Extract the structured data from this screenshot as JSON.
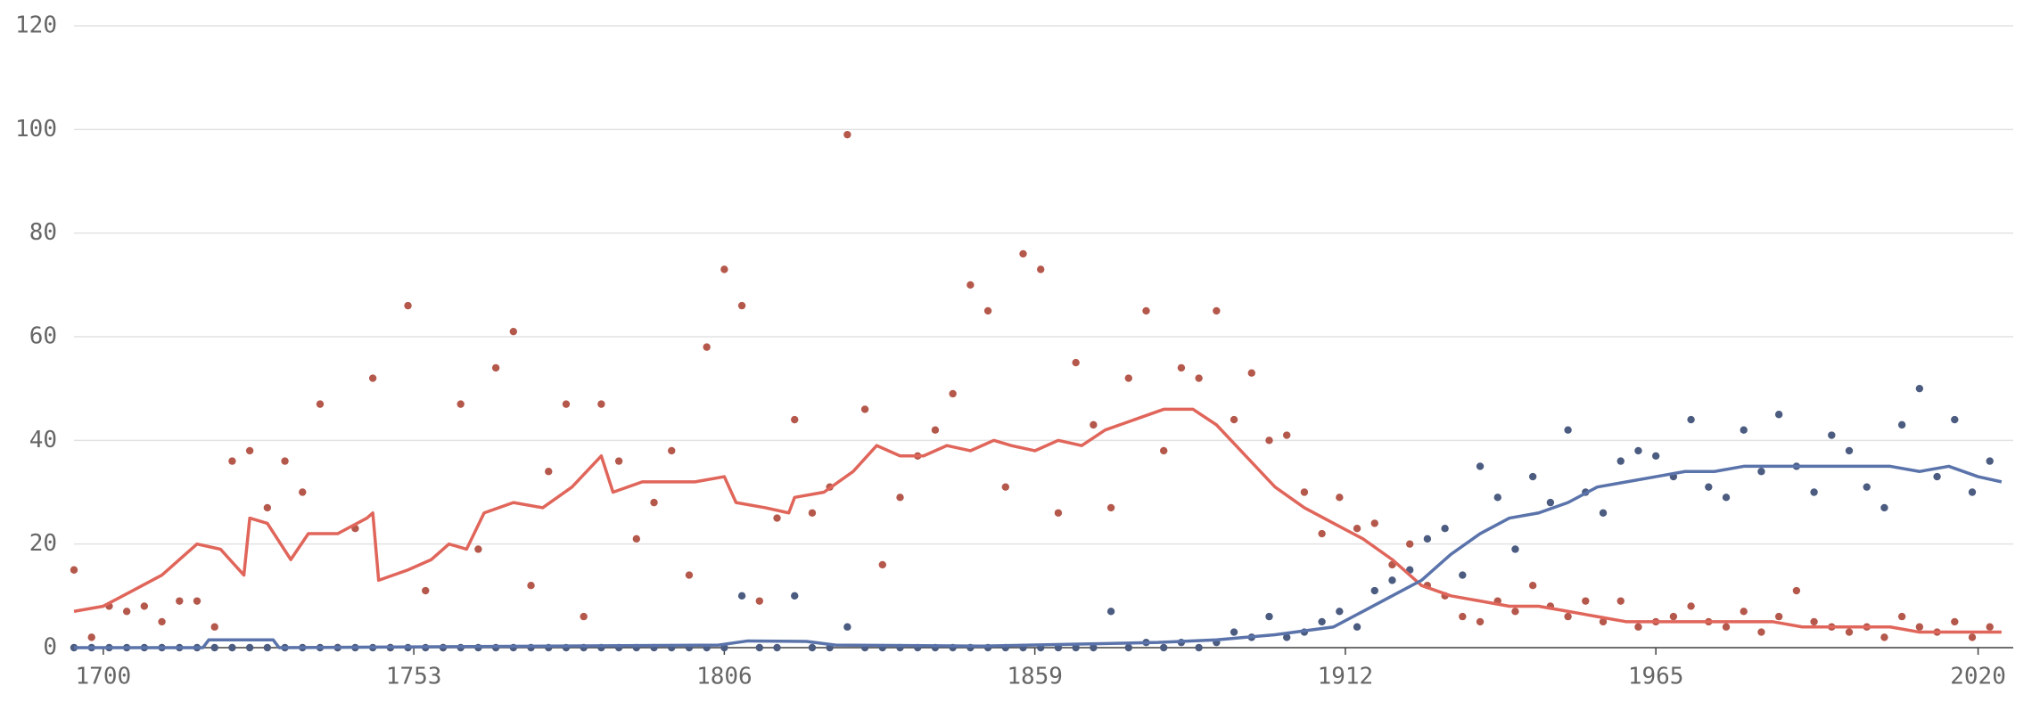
{
  "chart_data": {
    "type": "scatter",
    "xlim": [
      1695,
      2026
    ],
    "xticks": [
      1700,
      1753,
      1806,
      1859,
      1912,
      1965,
      2020
    ],
    "ylim": [
      0,
      120
    ],
    "yticks": [
      0,
      20,
      40,
      60,
      80,
      100,
      120
    ],
    "grid": true,
    "series": [
      {
        "mode": "markers",
        "color": "#b5584c",
        "x": [
          1695,
          1698,
          1701,
          1704,
          1707,
          1710,
          1713,
          1716,
          1719,
          1722,
          1725,
          1728,
          1731,
          1734,
          1737,
          1740,
          1743,
          1746,
          1749,
          1752,
          1755,
          1758,
          1761,
          1764,
          1767,
          1770,
          1773,
          1776,
          1779,
          1782,
          1785,
          1788,
          1791,
          1794,
          1797,
          1800,
          1803,
          1806,
          1809,
          1812,
          1815,
          1818,
          1821,
          1824,
          1827,
          1830,
          1833,
          1836,
          1839,
          1842,
          1845,
          1848,
          1851,
          1854,
          1857,
          1860,
          1863,
          1866,
          1869,
          1872,
          1875,
          1878,
          1881,
          1884,
          1887,
          1890,
          1893,
          1896,
          1899,
          1902,
          1905,
          1908,
          1911,
          1914,
          1917,
          1920,
          1923,
          1926,
          1929,
          1932,
          1935,
          1938,
          1941,
          1944,
          1947,
          1950,
          1953,
          1956,
          1959,
          1962,
          1965,
          1968,
          1971,
          1974,
          1977,
          1980,
          1983,
          1986,
          1989,
          1992,
          1995,
          1998,
          2001,
          2004,
          2007,
          2010,
          2013,
          2016,
          2019,
          2022
        ],
        "values": [
          15,
          2,
          8,
          7,
          8,
          5,
          9,
          9,
          4,
          36,
          38,
          27,
          36,
          30,
          47,
          0,
          23,
          52,
          0,
          66,
          11,
          0,
          47,
          19,
          54,
          61,
          12,
          34,
          47,
          6,
          47,
          36,
          21,
          28,
          38,
          14,
          58,
          73,
          66,
          9,
          25,
          44,
          26,
          31,
          99,
          46,
          16,
          29,
          37,
          42,
          49,
          70,
          65,
          31,
          76,
          73,
          26,
          55,
          43,
          27,
          52,
          65,
          38,
          54,
          52,
          65,
          44,
          53,
          40,
          41,
          30,
          22,
          29,
          23,
          24,
          16,
          20,
          12,
          10,
          6,
          5,
          9,
          7,
          12,
          8,
          6,
          9,
          5,
          9,
          4,
          5,
          6,
          8,
          5,
          4,
          7,
          3,
          6,
          11,
          5,
          4,
          3,
          4,
          2,
          6,
          4,
          3,
          5,
          2,
          4
        ]
      },
      {
        "mode": "markers",
        "color": "#4b5c80",
        "x": [
          1695,
          1698,
          1701,
          1704,
          1707,
          1710,
          1713,
          1716,
          1719,
          1722,
          1725,
          1728,
          1731,
          1734,
          1737,
          1740,
          1743,
          1746,
          1749,
          1752,
          1755,
          1758,
          1761,
          1764,
          1767,
          1770,
          1773,
          1776,
          1779,
          1782,
          1785,
          1788,
          1791,
          1794,
          1797,
          1800,
          1803,
          1806,
          1809,
          1812,
          1815,
          1818,
          1821,
          1824,
          1827,
          1830,
          1833,
          1836,
          1839,
          1842,
          1845,
          1848,
          1851,
          1854,
          1857,
          1860,
          1863,
          1866,
          1869,
          1872,
          1875,
          1878,
          1881,
          1884,
          1887,
          1890,
          1893,
          1896,
          1899,
          1902,
          1905,
          1908,
          1911,
          1914,
          1917,
          1920,
          1923,
          1926,
          1929,
          1932,
          1935,
          1938,
          1941,
          1944,
          1947,
          1950,
          1953,
          1956,
          1959,
          1962,
          1965,
          1968,
          1971,
          1974,
          1977,
          1980,
          1983,
          1986,
          1989,
          1992,
          1995,
          1998,
          2001,
          2004,
          2007,
          2010,
          2013,
          2016,
          2019,
          2022
        ],
        "values": [
          0,
          0,
          0,
          0,
          0,
          0,
          0,
          0,
          0,
          0,
          0,
          0,
          0,
          0,
          0,
          0,
          0,
          0,
          0,
          0,
          0,
          0,
          0,
          0,
          0,
          0,
          0,
          0,
          0,
          0,
          0,
          0,
          0,
          0,
          0,
          0,
          0,
          0,
          10,
          0,
          0,
          10,
          0,
          0,
          4,
          0,
          0,
          0,
          0,
          0,
          0,
          0,
          0,
          0,
          0,
          0,
          0,
          0,
          0,
          7,
          0,
          1,
          0,
          1,
          0,
          1,
          3,
          2,
          6,
          2,
          3,
          5,
          7,
          4,
          11,
          13,
          15,
          21,
          23,
          14,
          35,
          29,
          19,
          33,
          28,
          42,
          30,
          26,
          36,
          38,
          37,
          33,
          44,
          31,
          29,
          42,
          34,
          45,
          35,
          30,
          41,
          38,
          31,
          27,
          43,
          50,
          33,
          44,
          30,
          36
        ]
      },
      {
        "mode": "lines",
        "color": "#e0655a",
        "x": [
          1695,
          1700,
          1705,
          1710,
          1713,
          1716,
          1720,
          1724,
          1725,
          1728,
          1732,
          1735,
          1740,
          1745,
          1746,
          1747,
          1752,
          1756,
          1759,
          1762,
          1765,
          1770,
          1775,
          1780,
          1785,
          1787,
          1792,
          1797,
          1801,
          1806,
          1808,
          1813,
          1817,
          1818,
          1823,
          1828,
          1832,
          1836,
          1840,
          1844,
          1848,
          1852,
          1855,
          1859,
          1863,
          1867,
          1871,
          1876,
          1881,
          1886,
          1890,
          1895,
          1900,
          1905,
          1910,
          1915,
          1920,
          1925,
          1930,
          1935,
          1940,
          1945,
          1950,
          1955,
          1960,
          1965,
          1970,
          1975,
          1980,
          1985,
          1990,
          1995,
          2000,
          2005,
          2010,
          2015,
          2020,
          2024
        ],
        "values": [
          7,
          8,
          11,
          14,
          17,
          20,
          19,
          14,
          25,
          24,
          17,
          22,
          22,
          25,
          26,
          13,
          15,
          17,
          20,
          19,
          26,
          28,
          27,
          31,
          37,
          30,
          32,
          32,
          32,
          33,
          28,
          27,
          26,
          29,
          30,
          34,
          39,
          37,
          37,
          39,
          38,
          40,
          39,
          38,
          40,
          39,
          42,
          44,
          46,
          46,
          43,
          37,
          31,
          27,
          24,
          21,
          17,
          12,
          10,
          9,
          8,
          8,
          7,
          6,
          5,
          5,
          5,
          5,
          5,
          5,
          4,
          4,
          4,
          4,
          3,
          3,
          3,
          3
        ]
      },
      {
        "mode": "lines",
        "color": "#5a73aa",
        "x": [
          1695,
          1717,
          1718,
          1729,
          1730,
          1805,
          1810,
          1820,
          1825,
          1850,
          1880,
          1890,
          1900,
          1910,
          1915,
          1920,
          1925,
          1930,
          1935,
          1940,
          1945,
          1950,
          1955,
          1960,
          1965,
          1970,
          1975,
          1980,
          1985,
          1990,
          1995,
          2000,
          2005,
          2010,
          2015,
          2020,
          2024
        ],
        "values": [
          0,
          0,
          1.5,
          1.5,
          0,
          0.5,
          1.3,
          1.2,
          0.5,
          0.3,
          1,
          1.5,
          2.5,
          4,
          7,
          10,
          13,
          18,
          22,
          25,
          26,
          28,
          31,
          32,
          33,
          34,
          34,
          35,
          35,
          35,
          35,
          35,
          35,
          34,
          35,
          33,
          32
        ]
      }
    ]
  }
}
